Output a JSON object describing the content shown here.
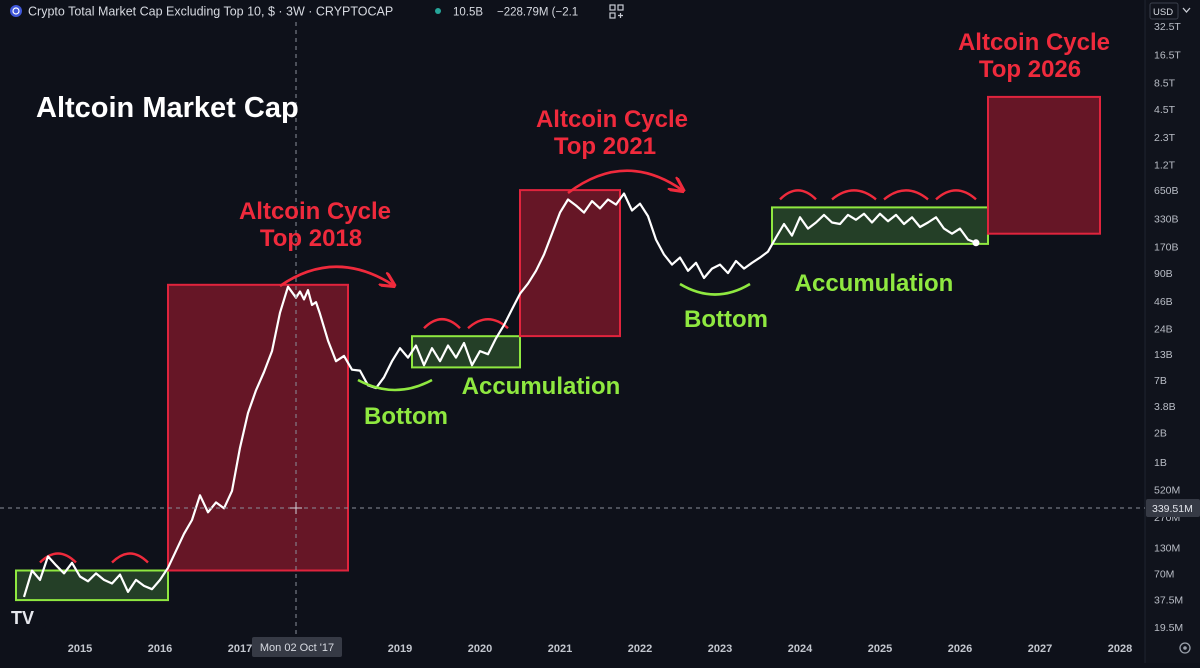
{
  "header": {
    "symbol_title": "Crypto Total Market Cap Excluding Top 10, $ · 3W · CRYPTOCAP",
    "last_value": "10.5B",
    "change": "−228.79M (−2.1",
    "currency": "USD"
  },
  "colors": {
    "background": "#0e111a",
    "line": "#ffffff",
    "red_zone": "#7a1729",
    "red_border": "#e0243d",
    "red_text": "#ef2a3c",
    "green_zone": "#2c4f2c",
    "green_border": "#8fe840",
    "green_text": "#8fe840"
  },
  "crosshair": {
    "date_label": "Mon 02 Oct '17",
    "price_label": "339.51M"
  },
  "logo_text": "TV",
  "chart_data": {
    "type": "line",
    "title": "Altcoin Market Cap",
    "y_scale": "log",
    "y_ticks": [
      "32.5T",
      "16.5T",
      "8.5T",
      "4.5T",
      "2.3T",
      "1.2T",
      "650B",
      "330B",
      "170B",
      "90B",
      "46B",
      "24B",
      "13B",
      "7B",
      "3.8B",
      "2B",
      "1B",
      "520M",
      "270M",
      "130M",
      "70M",
      "37.5M",
      "19.5M"
    ],
    "x_ticks": [
      "2015",
      "2016",
      "2017",
      "2018",
      "2019",
      "2020",
      "2021",
      "2022",
      "2023",
      "2024",
      "2025",
      "2026",
      "2027",
      "2028"
    ],
    "series": [
      {
        "x": [
          2014.3,
          2014.4,
          2014.5,
          2014.6,
          2014.7,
          2014.8,
          2014.9,
          2015.0,
          2015.1,
          2015.2,
          2015.3,
          2015.4,
          2015.5,
          2015.6,
          2015.7,
          2015.8,
          2015.9,
          2016.0,
          2016.1,
          2016.2,
          2016.3,
          2016.4,
          2016.5,
          2016.6,
          2016.7,
          2016.8,
          2016.9,
          2017.0,
          2017.1,
          2017.2,
          2017.3,
          2017.4,
          2017.5,
          2017.6,
          2017.7,
          2017.75,
          2017.8,
          2017.85,
          2017.9,
          2017.95,
          2018.0,
          2018.1,
          2018.2,
          2018.3,
          2018.4,
          2018.5,
          2018.6,
          2018.7,
          2018.8,
          2018.9,
          2019.0,
          2019.1,
          2019.2,
          2019.3,
          2019.4,
          2019.5,
          2019.6,
          2019.7,
          2019.8,
          2019.9,
          2020.0,
          2020.1,
          2020.2,
          2020.3,
          2020.4,
          2020.5,
          2020.6,
          2020.7,
          2020.8,
          2020.9,
          2021.0,
          2021.1,
          2021.2,
          2021.3,
          2021.4,
          2021.5,
          2021.6,
          2021.7,
          2021.8,
          2021.9,
          2022.0,
          2022.1,
          2022.2,
          2022.3,
          2022.4,
          2022.5,
          2022.6,
          2022.7,
          2022.8,
          2022.9,
          2023.0,
          2023.1,
          2023.2,
          2023.3,
          2023.4,
          2023.5,
          2023.6,
          2023.7,
          2023.8,
          2023.9,
          2024.0,
          2024.1,
          2024.2,
          2024.3,
          2024.4,
          2024.5,
          2024.6,
          2024.7,
          2024.8,
          2024.9,
          2025.0,
          2025.1,
          2025.2,
          2025.3,
          2025.4,
          2025.5,
          2025.6,
          2025.7,
          2025.8,
          2025.9,
          2026.0,
          2026.1,
          2026.2
        ],
        "y": [
          40,
          75,
          60,
          105,
          85,
          70,
          90,
          65,
          58,
          70,
          60,
          55,
          68,
          45,
          60,
          52,
          48,
          60,
          80,
          120,
          180,
          250,
          450,
          300,
          380,
          330,
          500,
          1400,
          3200,
          5500,
          8500,
          14000,
          35000,
          65000,
          50000,
          58000,
          48000,
          60000,
          42000,
          45000,
          34000,
          18000,
          11000,
          12500,
          9000,
          8800,
          6200,
          5800,
          7500,
          11000,
          15000,
          12000,
          16000,
          10000,
          15000,
          11000,
          16000,
          12000,
          17000,
          10000,
          14000,
          13000,
          19000,
          26000,
          38000,
          55000,
          70000,
          95000,
          140000,
          230000,
          380000,
          520000,
          450000,
          380000,
          500000,
          420000,
          520000,
          460000,
          600000,
          400000,
          470000,
          350000,
          200000,
          140000,
          110000,
          130000,
          95000,
          115000,
          80000,
          100000,
          110000,
          90000,
          120000,
          100000,
          115000,
          130000,
          150000,
          210000,
          290000,
          220000,
          340000,
          260000,
          300000,
          360000,
          300000,
          290000,
          360000,
          320000,
          370000,
          300000,
          370000,
          310000,
          360000,
          290000,
          340000,
          270000,
          300000,
          340000,
          260000,
          230000,
          260000,
          200000,
          185000
        ]
      }
    ],
    "annotations": {
      "zones": [
        {
          "kind": "accumulation",
          "x0": 2014.2,
          "x1": 2016.1,
          "y0": 37,
          "y1": 75
        },
        {
          "kind": "top",
          "x0": 2016.1,
          "x1": 2018.35,
          "y0": 75,
          "y1": 68000
        },
        {
          "kind": "accumulation",
          "x0": 2019.15,
          "x1": 2020.5,
          "y0": 9500,
          "y1": 20000
        },
        {
          "kind": "top",
          "x0": 2020.5,
          "x1": 2021.75,
          "y0": 20000,
          "y1": 650000
        },
        {
          "kind": "accumulation",
          "x0": 2023.65,
          "x1": 2026.35,
          "y0": 180000,
          "y1": 430000
        },
        {
          "kind": "top",
          "x0": 2026.35,
          "x1": 2027.75,
          "y0": 230000,
          "y1": 6000000
        }
      ],
      "labels": {
        "top_2018": [
          "Altcoin Cycle",
          "Top 2018"
        ],
        "top_2021": [
          "Altcoin Cycle",
          "Top 2021"
        ],
        "top_2026": [
          "Altcoin Cycle",
          "Top 2026"
        ],
        "bottom_1": "Bottom",
        "bottom_2": "Bottom",
        "accumulation_1": "Accumulation",
        "accumulation_2": "Accumulation"
      }
    }
  }
}
